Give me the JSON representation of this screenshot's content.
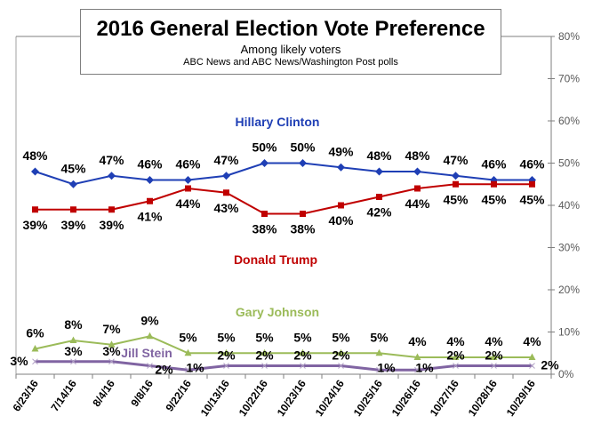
{
  "chart_data": {
    "type": "line",
    "title": "2016 General Election Vote Preference",
    "subtitle": "Among likely voters",
    "source": "ABC News and ABC News/Washington  Post polls",
    "xlabel": "",
    "ylabel": "",
    "ylim": [
      0,
      80
    ],
    "y_axis_position": "right",
    "y_ticks": [
      0,
      10,
      20,
      30,
      40,
      50,
      60,
      70,
      80
    ],
    "y_tick_labels": [
      "0%",
      "10%",
      "20%",
      "30%",
      "40%",
      "50%",
      "60%",
      "70%",
      "80%"
    ],
    "grid": false,
    "legend": "inline-labels",
    "categories": [
      "6/23/16",
      "7/14/16",
      "8/4/16",
      "9/8/16",
      "9/22/16",
      "10/13/16",
      "10/22/16",
      "10/23/16",
      "10/24/16",
      "10/25/16",
      "10/26/16",
      "10/27/16",
      "10/28/16",
      "10/29/16"
    ],
    "series": [
      {
        "name": "Hillary Clinton",
        "color": "#1f3fb5",
        "marker": "diamond",
        "values": [
          48,
          45,
          47,
          46,
          46,
          47,
          50,
          50,
          49,
          48,
          48,
          47,
          46,
          46
        ],
        "labels": [
          "48%",
          "45%",
          "47%",
          "46%",
          "46%",
          "47%",
          "50%",
          "50%",
          "49%",
          "48%",
          "48%",
          "47%",
          "46%",
          "46%"
        ],
        "label_position": "above"
      },
      {
        "name": "Donald Trump",
        "color": "#c00000",
        "marker": "square",
        "values": [
          39,
          39,
          39,
          41,
          44,
          43,
          38,
          38,
          40,
          42,
          44,
          45,
          45,
          45
        ],
        "labels": [
          "39%",
          "39%",
          "39%",
          "41%",
          "44%",
          "43%",
          "38%",
          "38%",
          "40%",
          "42%",
          "44%",
          "45%",
          "45%",
          "45%"
        ],
        "label_position": "below"
      },
      {
        "name": "Gary Johnson",
        "color": "#9bbb59",
        "marker": "triangle",
        "values": [
          6,
          8,
          7,
          9,
          5,
          5,
          5,
          5,
          5,
          5,
          4,
          4,
          4,
          4
        ],
        "labels": [
          "6%",
          "8%",
          "7%",
          "9%",
          "5%",
          "5%",
          "5%",
          "5%",
          "5%",
          "5%",
          "4%",
          "4%",
          "4%",
          "4%"
        ],
        "label_position": "above"
      },
      {
        "name": "Jill Stein",
        "color": "#8064a2",
        "marker": "x",
        "values": [
          3,
          3,
          3,
          2,
          1,
          2,
          2,
          2,
          2,
          1,
          1,
          2,
          2,
          2
        ],
        "labels": [
          "3%",
          "3%",
          "3%",
          "2%",
          "1%",
          "2%",
          "2%",
          "2%",
          "2%",
          "1%",
          "1%",
          "2%",
          "2%",
          "2%"
        ],
        "label_position": "mixed"
      }
    ]
  }
}
